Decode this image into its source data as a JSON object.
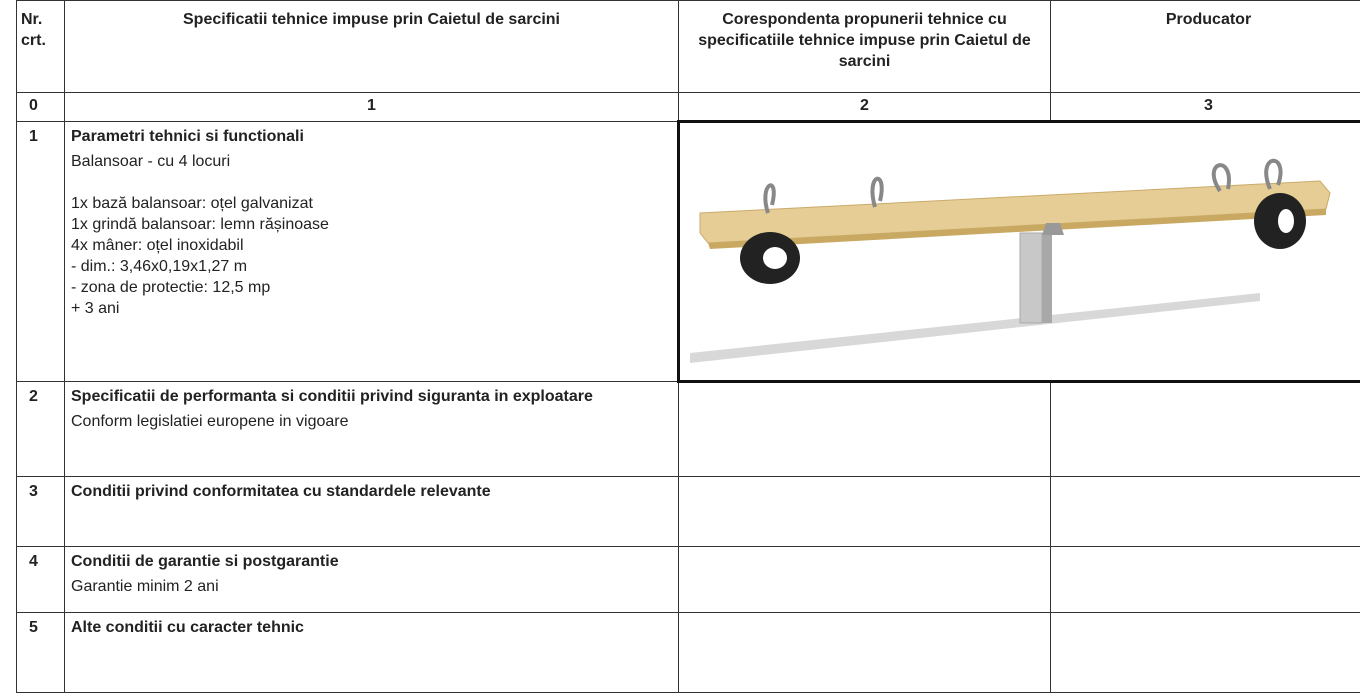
{
  "table": {
    "header": [
      "Nr. crt.",
      "Specificatii tehnice impuse prin Caietul de sarcini",
      "Corespondenta propunerii tehnice cu specificatiile tehnice impuse prin Caietul de sarcini",
      "Producator"
    ],
    "index_row": [
      "0",
      "1",
      "2",
      "3"
    ],
    "rows": [
      {
        "number": "1",
        "title": "Parametri tehnici si functionali",
        "description": "Balansoar - cu 4 locuri",
        "items": [
          "1x bază balansoar: oțel galvanizat",
          "1x grindă balansoar: lemn rășinoase",
          "4x mâner: oțel inoxidabil",
          "- dim.: 3,46x0,19x1,27 m",
          "- zona de protectie: 12,5 mp",
          "+ 3 ani"
        ]
      },
      {
        "number": "2",
        "title": "Specificatii de performanta si conditii privind siguranta in exploatare",
        "description": "Conform legislatiei europene in vigoare"
      },
      {
        "number": "3",
        "title": "Conditii privind conformitatea cu standardele relevante"
      },
      {
        "number": "4",
        "title": "Conditii de garantie si postgarantie",
        "description": "Garantie minim 2 ani"
      },
      {
        "number": "5",
        "title": "Alte conditii cu caracter tehnic"
      }
    ]
  }
}
